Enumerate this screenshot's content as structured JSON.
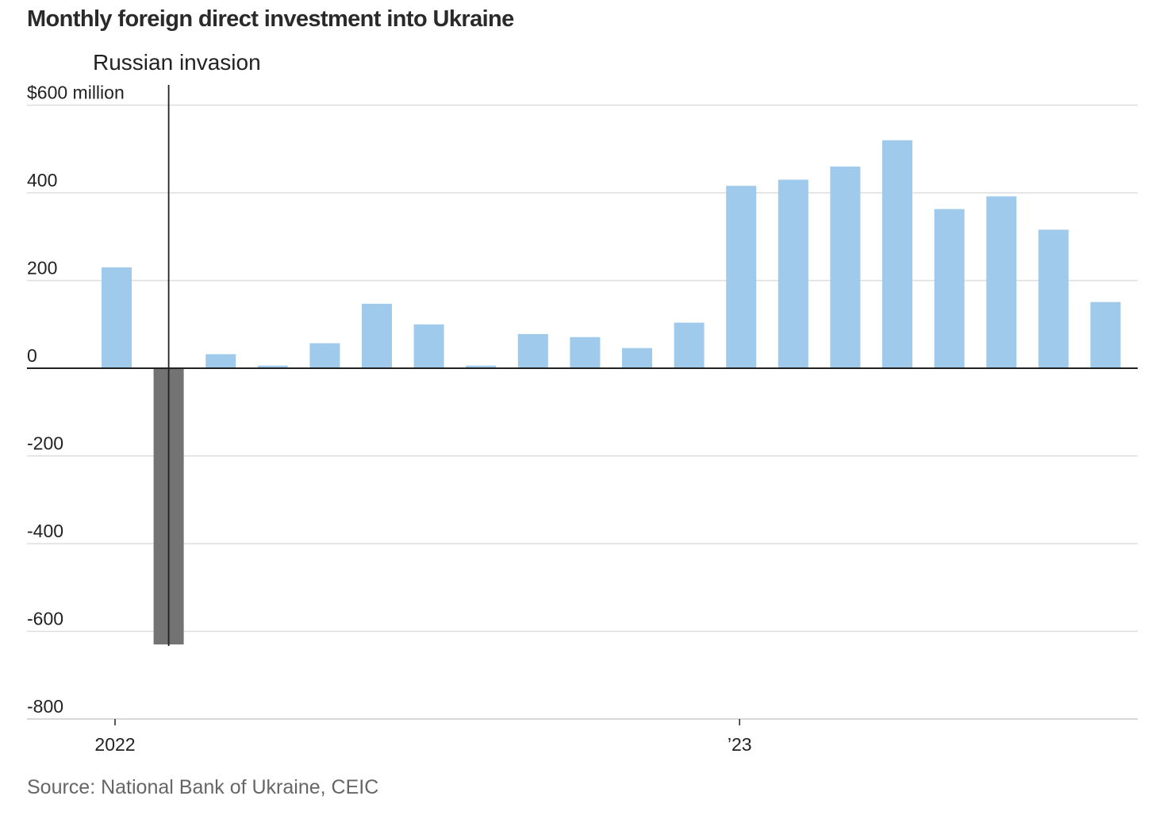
{
  "title": "Monthly foreign direct investment into Ukraine",
  "source": "Source: National Bank of Ukraine, CEIC",
  "colors": {
    "bar": "#a0caec",
    "highlight_bar": "#737373",
    "grid": "#dddddd",
    "axis": "#222222"
  },
  "chart_data": {
    "type": "bar",
    "title": "Monthly foreign direct investment into Ukraine",
    "xlabel": "",
    "ylabel": "",
    "unit_label": "$600 million",
    "ylim": [
      -800,
      600
    ],
    "y_ticks": [
      {
        "value": 600,
        "label": "$600 million"
      },
      {
        "value": 400,
        "label": "400"
      },
      {
        "value": 200,
        "label": "200"
      },
      {
        "value": 0,
        "label": "0"
      },
      {
        "value": -200,
        "label": "-200"
      },
      {
        "value": -400,
        "label": "-400"
      },
      {
        "value": -600,
        "label": "-600"
      },
      {
        "value": -800,
        "label": "-800"
      }
    ],
    "categories": [
      "2022-01",
      "2022-02",
      "2022-03",
      "2022-04",
      "2022-05",
      "2022-06",
      "2022-07",
      "2022-08",
      "2022-09",
      "2022-10",
      "2022-11",
      "2022-12",
      "2023-01",
      "2023-02",
      "2023-03",
      "2023-04",
      "2023-05",
      "2023-06",
      "2023-07",
      "2023-08"
    ],
    "values": [
      230,
      -630,
      32,
      6,
      57,
      147,
      100,
      6,
      78,
      71,
      46,
      104,
      416,
      430,
      460,
      520,
      363,
      392,
      316,
      151
    ],
    "highlight_index": 1,
    "x_ticks": [
      {
        "index": 0,
        "label": "2022"
      },
      {
        "index": 12,
        "label": "’23"
      }
    ],
    "annotation": {
      "label": "Russian invasion",
      "index": 1
    },
    "grid": true,
    "legend": "none"
  }
}
